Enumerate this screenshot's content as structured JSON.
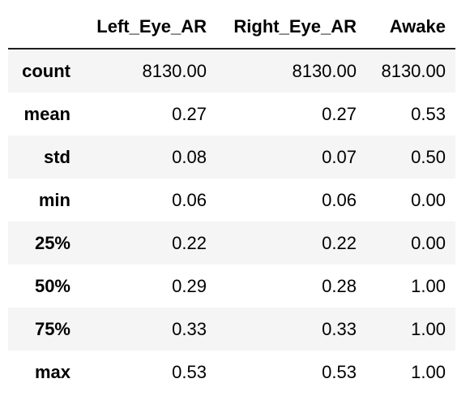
{
  "table": {
    "index_header": "",
    "columns": [
      "Left_Eye_AR",
      "Right_Eye_AR",
      "Awake"
    ],
    "rows": [
      {
        "label": "count",
        "values": [
          "8130.00",
          "8130.00",
          "8130.00"
        ]
      },
      {
        "label": "mean",
        "values": [
          "0.27",
          "0.27",
          "0.53"
        ]
      },
      {
        "label": "std",
        "values": [
          "0.08",
          "0.07",
          "0.50"
        ]
      },
      {
        "label": "min",
        "values": [
          "0.06",
          "0.06",
          "0.00"
        ]
      },
      {
        "label": "25%",
        "values": [
          "0.22",
          "0.22",
          "0.00"
        ]
      },
      {
        "label": "50%",
        "values": [
          "0.29",
          "0.28",
          "1.00"
        ]
      },
      {
        "label": "75%",
        "values": [
          "0.33",
          "0.33",
          "1.00"
        ]
      },
      {
        "label": "max",
        "values": [
          "0.53",
          "0.53",
          "1.00"
        ]
      }
    ]
  },
  "colors": {
    "stripe": "#f5f5f5",
    "header_rule": "#1e1e1e",
    "text": "#000000",
    "background": "#ffffff"
  }
}
